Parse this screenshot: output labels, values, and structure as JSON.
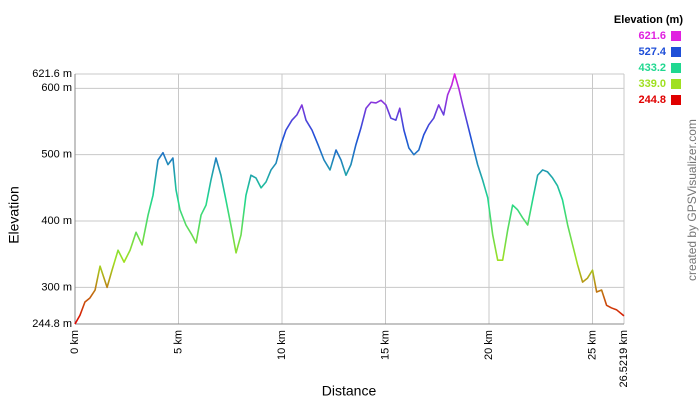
{
  "chart_data": {
    "type": "line",
    "x_label": "Distance",
    "y_label": "Elevation",
    "credit": "created by GPSVisualizer.com",
    "legend": {
      "title": "Elevation (m)",
      "stops": [
        {
          "value": 621.6,
          "label": "621.6",
          "color": "#e020e0"
        },
        {
          "value": 527.4,
          "label": "527.4",
          "color": "#1f4fd8"
        },
        {
          "value": 433.2,
          "label": "433.2",
          "color": "#20d890"
        },
        {
          "value": 339,
          "label": "339.0",
          "color": "#a0e020"
        },
        {
          "value": 244.8,
          "label": "244.8",
          "color": "#e00000"
        }
      ]
    },
    "xlim": [
      0,
      26.5219
    ],
    "xticks": [
      {
        "value": 0,
        "label": "0 km"
      },
      {
        "value": 5,
        "label": "5 km"
      },
      {
        "value": 10,
        "label": "10 km"
      },
      {
        "value": 15,
        "label": "15 km"
      },
      {
        "value": 20,
        "label": "20 km"
      },
      {
        "value": 25,
        "label": "25 km"
      },
      {
        "value": 26.5219,
        "label": "26.5219 km"
      }
    ],
    "ylim": [
      244.8,
      621.6
    ],
    "yticks": [
      {
        "value": 244.8,
        "label": "244.8 m"
      },
      {
        "value": 300,
        "label": "300 m"
      },
      {
        "value": 400,
        "label": "400 m"
      },
      {
        "value": 500,
        "label": "500 m"
      },
      {
        "value": 600,
        "label": "600 m"
      },
      {
        "value": 621.6,
        "label": "621.6 m"
      }
    ],
    "grid": true,
    "x": [
      0,
      0.24,
      0.48,
      0.72,
      0.97,
      1.21,
      1.55,
      1.79,
      2.08,
      2.37,
      2.66,
      2.95,
      3.24,
      3.53,
      3.77,
      4.01,
      4.25,
      4.49,
      4.73,
      4.88,
      5.07,
      5.36,
      5.65,
      5.85,
      6.09,
      6.33,
      6.57,
      6.81,
      7.05,
      7.29,
      7.58,
      7.78,
      8.02,
      8.26,
      8.5,
      8.74,
      8.99,
      9.23,
      9.47,
      9.71,
      9.95,
      10.19,
      10.48,
      10.72,
      10.96,
      11.16,
      11.45,
      11.74,
      12.03,
      12.32,
      12.61,
      12.85,
      13.09,
      13.33,
      13.57,
      13.81,
      14.06,
      14.3,
      14.54,
      14.78,
      15.02,
      15.26,
      15.5,
      15.69,
      15.89,
      16.13,
      16.37,
      16.61,
      16.85,
      17.09,
      17.33,
      17.57,
      17.81,
      18.0,
      18.2,
      18.34,
      18.54,
      18.73,
      18.97,
      19.21,
      19.45,
      19.69,
      19.94,
      20.18,
      20.42,
      20.66,
      20.9,
      21.14,
      21.38,
      21.62,
      21.87,
      22.11,
      22.35,
      22.59,
      22.83,
      23.07,
      23.31,
      23.55,
      23.8,
      24.04,
      24.28,
      24.52,
      24.76,
      25.0,
      25.2,
      25.44,
      25.68,
      25.92,
      26.17,
      26.52
    ],
    "values": [
      244.8,
      258,
      278,
      284,
      296,
      332,
      300,
      326,
      356,
      338,
      356,
      383,
      364,
      409,
      439,
      492,
      503,
      485,
      495,
      447,
      417,
      394,
      379,
      367,
      409,
      424,
      462,
      495,
      469,
      432,
      386,
      352,
      379,
      439,
      469,
      465,
      450,
      459,
      477,
      487,
      515,
      537,
      552,
      560,
      575,
      552,
      537,
      515,
      492,
      477,
      507,
      492,
      469,
      485,
      515,
      540,
      570,
      579,
      578,
      582,
      575,
      555,
      552,
      570,
      537,
      510,
      500,
      507,
      530,
      545,
      555,
      575,
      560,
      590,
      605,
      621.6,
      600,
      575,
      545,
      515,
      485,
      462,
      435,
      379,
      341,
      341,
      386,
      424,
      417,
      405,
      394,
      432,
      469,
      477,
      474,
      465,
      453,
      432,
      394,
      364,
      334,
      308,
      314,
      326,
      293,
      296,
      273,
      269,
      266,
      257
    ]
  }
}
